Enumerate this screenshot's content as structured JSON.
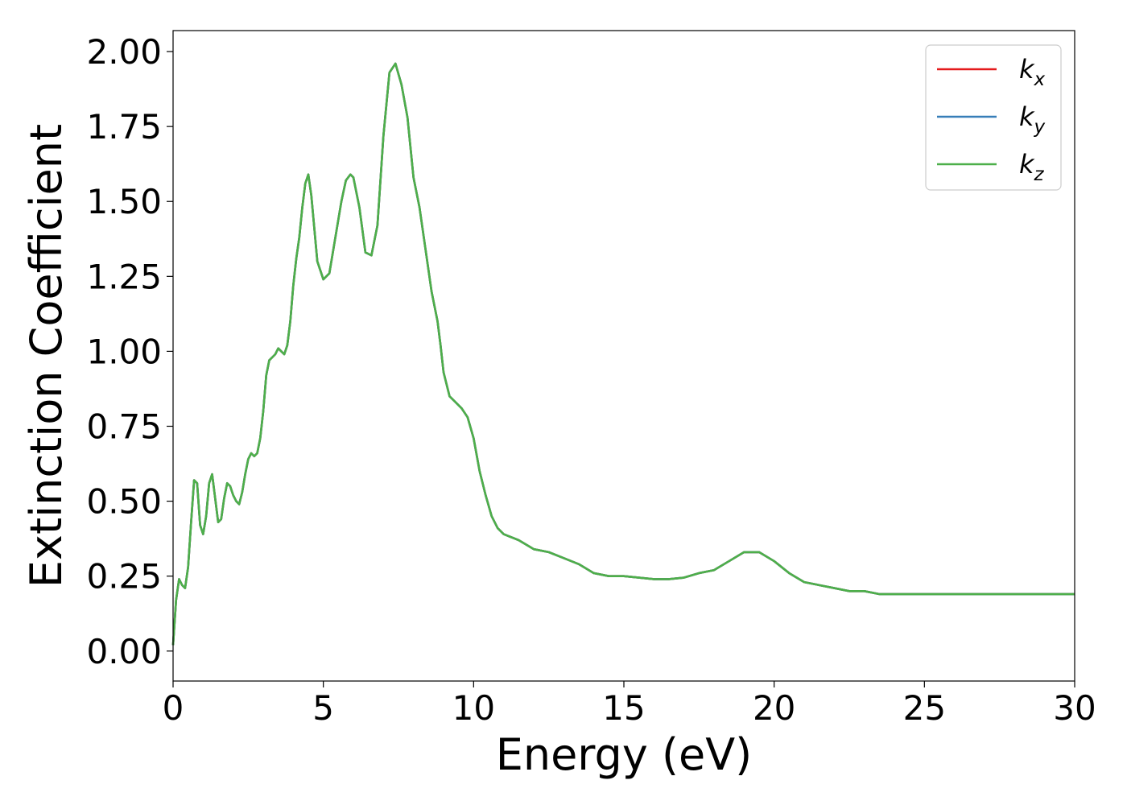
{
  "chart_data": {
    "type": "line",
    "title": "",
    "xlabel": "Energy (eV)",
    "ylabel": "Extinction Coefficient",
    "xlim": [
      0,
      30
    ],
    "ylim": [
      -0.1,
      2.07
    ],
    "xticks": [
      0,
      5,
      10,
      15,
      20,
      25,
      30
    ],
    "xtick_labels": [
      "0",
      "5",
      "10",
      "15",
      "20",
      "25",
      "30"
    ],
    "yticks": [
      0.0,
      0.25,
      0.5,
      0.75,
      1.0,
      1.25,
      1.5,
      1.75,
      2.0
    ],
    "ytick_labels": [
      "0.00",
      "0.25",
      "0.50",
      "0.75",
      "1.00",
      "1.25",
      "1.50",
      "1.75",
      "2.00"
    ],
    "grid": false,
    "legend_position": "top-right",
    "x": [
      0.0,
      0.1,
      0.2,
      0.3,
      0.4,
      0.5,
      0.6,
      0.7,
      0.8,
      0.9,
      1.0,
      1.1,
      1.2,
      1.3,
      1.4,
      1.5,
      1.6,
      1.7,
      1.8,
      1.9,
      2.0,
      2.1,
      2.2,
      2.3,
      2.4,
      2.5,
      2.6,
      2.7,
      2.8,
      2.9,
      3.0,
      3.1,
      3.2,
      3.3,
      3.4,
      3.5,
      3.6,
      3.7,
      3.8,
      3.9,
      4.0,
      4.1,
      4.2,
      4.3,
      4.4,
      4.5,
      4.6,
      4.8,
      5.0,
      5.2,
      5.4,
      5.6,
      5.75,
      5.9,
      6.0,
      6.2,
      6.4,
      6.6,
      6.8,
      7.0,
      7.2,
      7.4,
      7.6,
      7.8,
      7.9,
      8.0,
      8.2,
      8.4,
      8.6,
      8.8,
      8.9,
      9.0,
      9.2,
      9.4,
      9.6,
      9.8,
      10.0,
      10.2,
      10.4,
      10.6,
      10.8,
      11.0,
      11.5,
      12.0,
      12.5,
      13.0,
      13.5,
      14.0,
      14.5,
      15.0,
      15.5,
      16.0,
      16.5,
      17.0,
      17.5,
      18.0,
      18.5,
      19.0,
      19.5,
      20.0,
      20.5,
      21.0,
      21.5,
      22.0,
      22.5,
      23.0,
      23.5,
      24.0,
      24.5,
      25.0,
      25.5,
      26.0,
      26.5,
      27.0,
      27.5,
      27.8,
      28.0,
      28.5,
      29.0,
      29.5,
      30.0
    ],
    "y": [
      0.02,
      0.17,
      0.24,
      0.22,
      0.21,
      0.28,
      0.43,
      0.57,
      0.56,
      0.42,
      0.39,
      0.45,
      0.56,
      0.59,
      0.51,
      0.43,
      0.44,
      0.51,
      0.56,
      0.55,
      0.52,
      0.5,
      0.49,
      0.53,
      0.59,
      0.64,
      0.66,
      0.65,
      0.66,
      0.71,
      0.8,
      0.92,
      0.97,
      0.98,
      0.99,
      1.01,
      1.0,
      0.99,
      1.02,
      1.1,
      1.22,
      1.31,
      1.38,
      1.48,
      1.56,
      1.59,
      1.52,
      1.3,
      1.24,
      1.26,
      1.38,
      1.5,
      1.57,
      1.59,
      1.58,
      1.48,
      1.33,
      1.32,
      1.42,
      1.72,
      1.93,
      1.96,
      1.89,
      1.78,
      1.68,
      1.58,
      1.48,
      1.34,
      1.2,
      1.1,
      1.02,
      0.93,
      0.85,
      0.83,
      0.81,
      0.78,
      0.71,
      0.6,
      0.52,
      0.45,
      0.41,
      0.39,
      0.37,
      0.34,
      0.33,
      0.31,
      0.29,
      0.26,
      0.25,
      0.25,
      0.245,
      0.24,
      0.24,
      0.245,
      0.26,
      0.27,
      0.3,
      0.33,
      0.33,
      0.3,
      0.26,
      0.23,
      0.22,
      0.21,
      0.2,
      0.2,
      0.19,
      0.19,
      0.19,
      0.19,
      0.19,
      0.19,
      0.19,
      0.19,
      0.19,
      0.19,
      0.19,
      0.19,
      0.19,
      0.19,
      0.19
    ],
    "series": [
      {
        "name": "k_x",
        "label_base": "k",
        "label_sub": "x",
        "color": "#e41a1c"
      },
      {
        "name": "k_y",
        "label_base": "k",
        "label_sub": "y",
        "color": "#377eb8"
      },
      {
        "name": "k_z",
        "label_base": "k",
        "label_sub": "z",
        "color": "#4daf4a"
      }
    ]
  }
}
